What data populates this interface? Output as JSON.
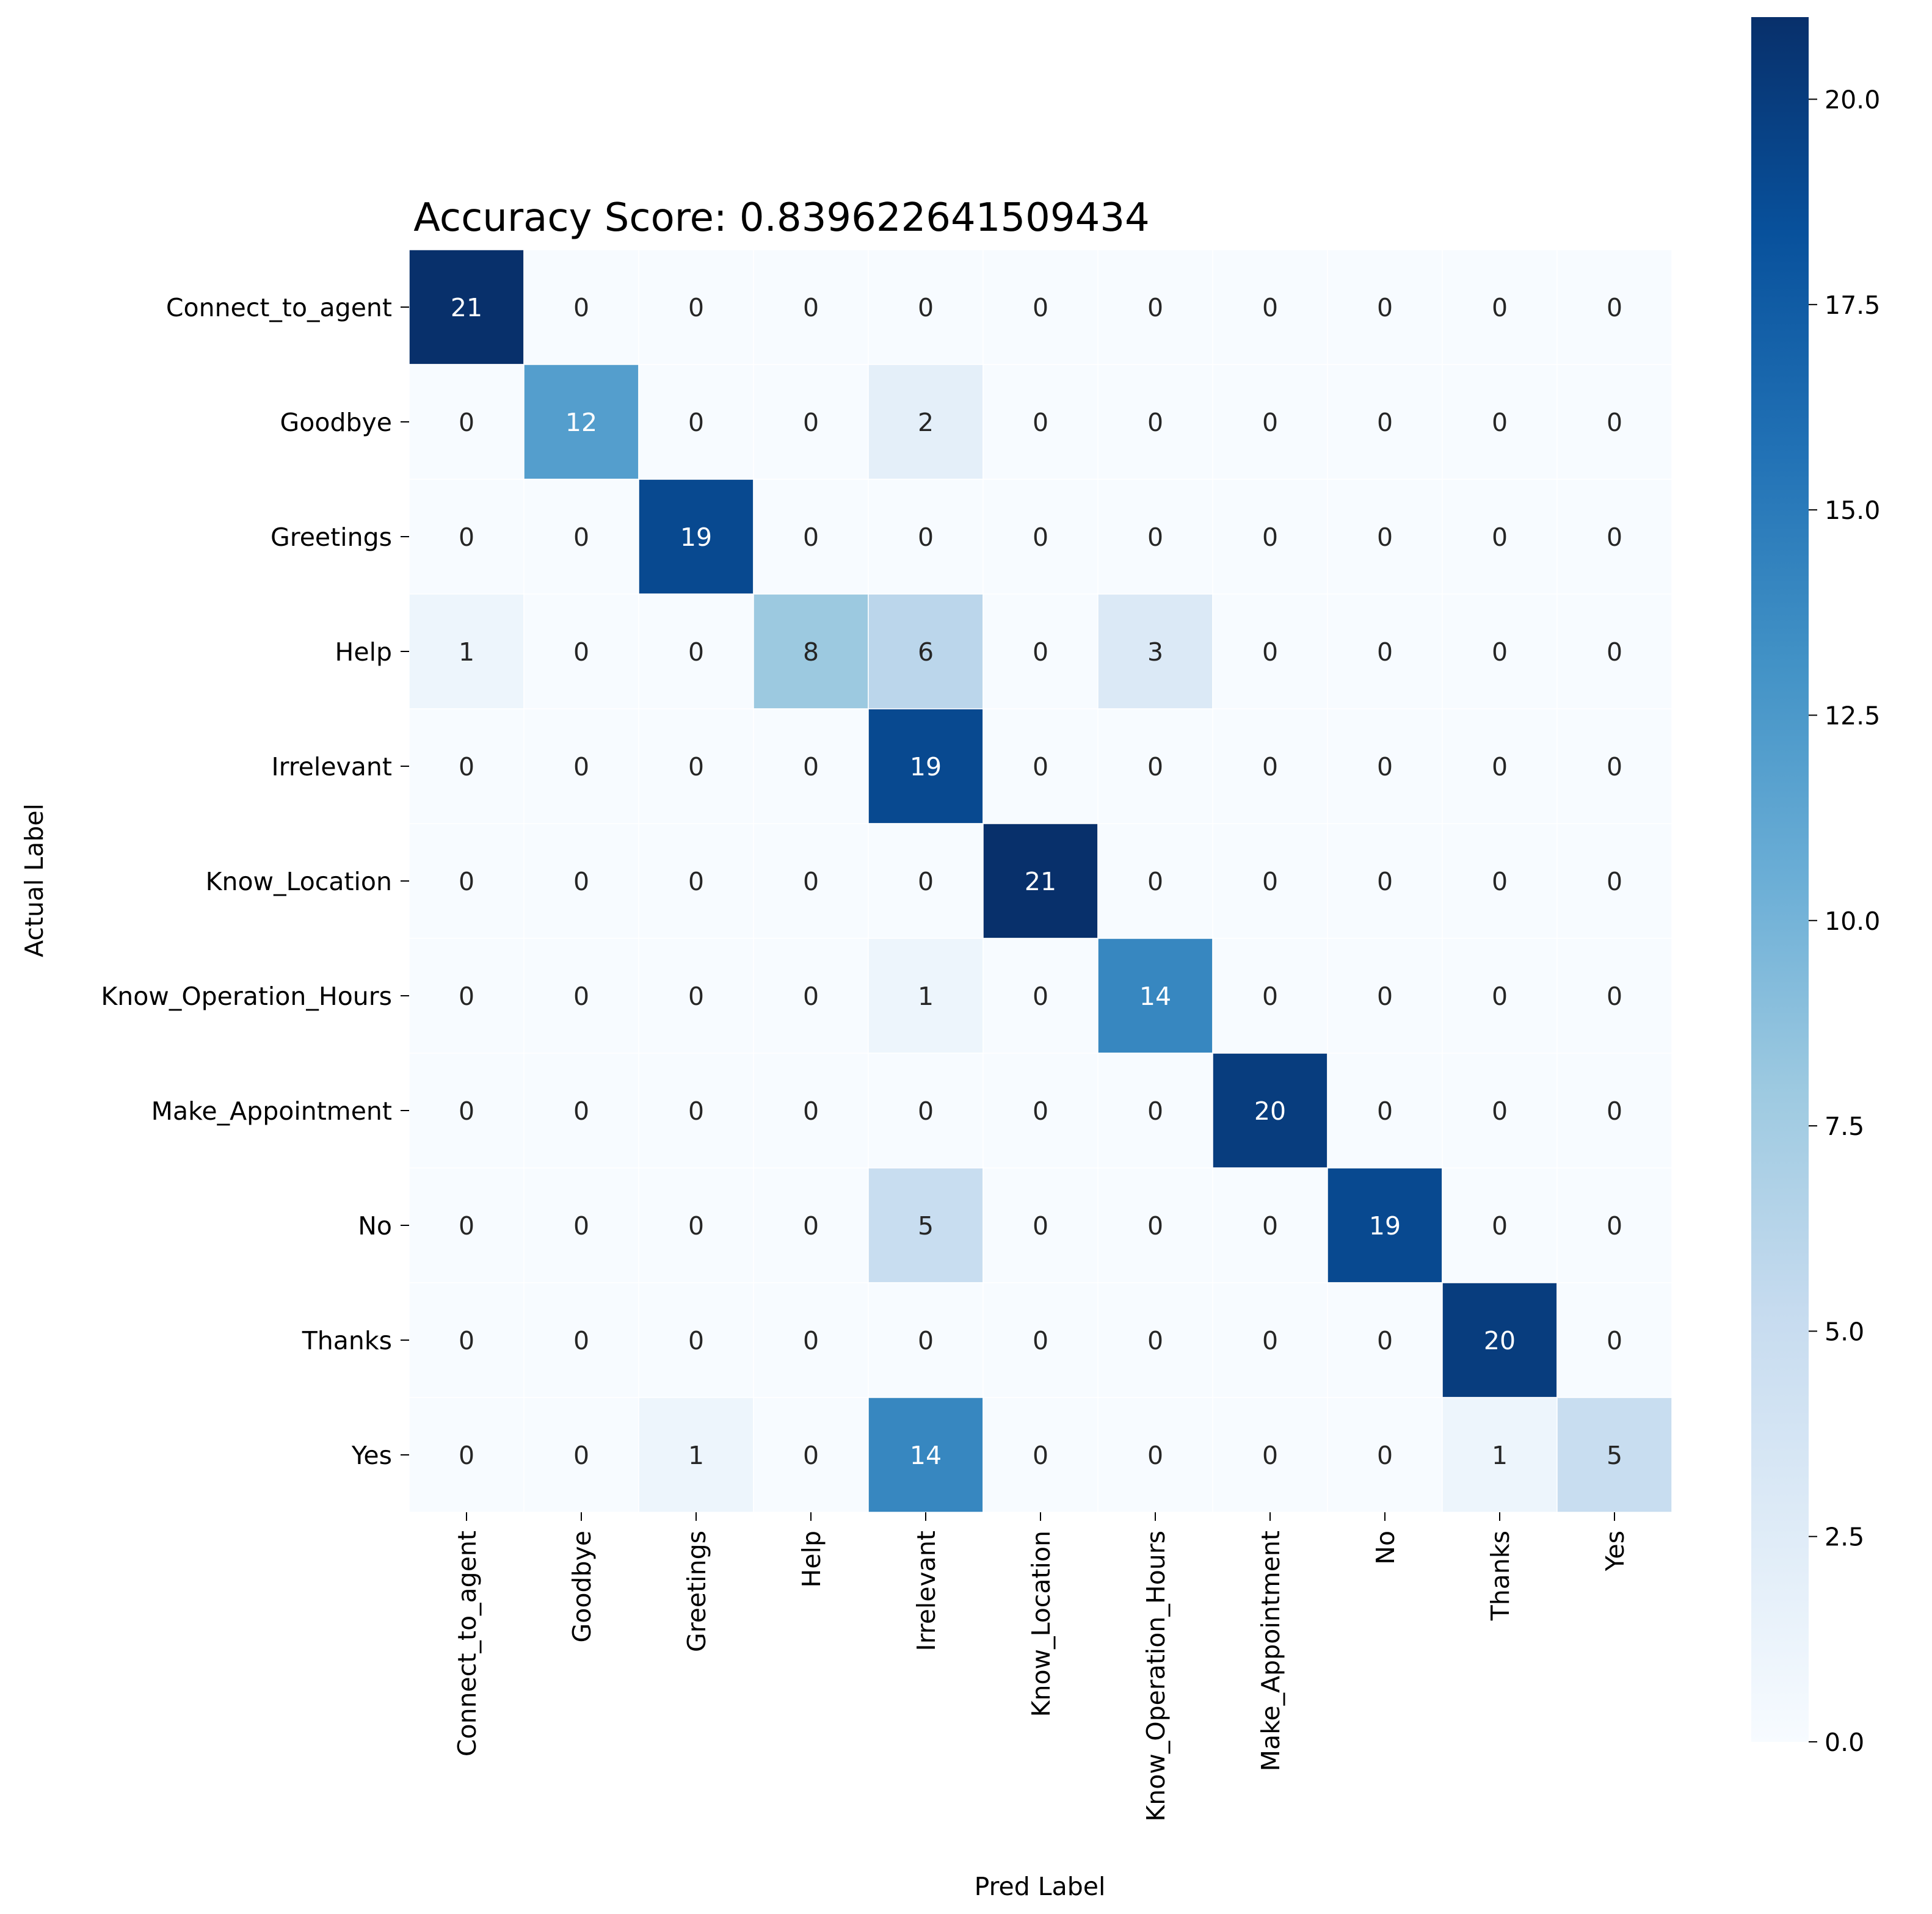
{
  "chart_data": {
    "type": "heatmap",
    "title": "Accuracy Score: 0.839622641509434",
    "xlabel": "Pred Label",
    "ylabel": "Actual Label",
    "x_categories": [
      "Connect_to_agent",
      "Goodbye",
      "Greetings",
      "Help",
      "Irrelevant",
      "Know_Location",
      "Know_Operation_Hours",
      "Make_Appointment",
      "No",
      "Thanks",
      "Yes"
    ],
    "y_categories": [
      "Connect_to_agent",
      "Goodbye",
      "Greetings",
      "Help",
      "Irrelevant",
      "Know_Location",
      "Know_Operation_Hours",
      "Make_Appointment",
      "No",
      "Thanks",
      "Yes"
    ],
    "matrix": [
      [
        21,
        0,
        0,
        0,
        0,
        0,
        0,
        0,
        0,
        0,
        0
      ],
      [
        0,
        12,
        0,
        0,
        2,
        0,
        0,
        0,
        0,
        0,
        0
      ],
      [
        0,
        0,
        19,
        0,
        0,
        0,
        0,
        0,
        0,
        0,
        0
      ],
      [
        1,
        0,
        0,
        8,
        6,
        0,
        3,
        0,
        0,
        0,
        0
      ],
      [
        0,
        0,
        0,
        0,
        19,
        0,
        0,
        0,
        0,
        0,
        0
      ],
      [
        0,
        0,
        0,
        0,
        0,
        21,
        0,
        0,
        0,
        0,
        0
      ],
      [
        0,
        0,
        0,
        0,
        1,
        0,
        14,
        0,
        0,
        0,
        0
      ],
      [
        0,
        0,
        0,
        0,
        0,
        0,
        0,
        20,
        0,
        0,
        0
      ],
      [
        0,
        0,
        0,
        0,
        5,
        0,
        0,
        0,
        19,
        0,
        0
      ],
      [
        0,
        0,
        0,
        0,
        0,
        0,
        0,
        0,
        0,
        20,
        0
      ],
      [
        0,
        0,
        1,
        0,
        14,
        0,
        0,
        0,
        0,
        1,
        5
      ]
    ],
    "colormap": "Blues",
    "colorbar": {
      "range": [
        0,
        21
      ],
      "ticks": [
        0.0,
        2.5,
        5.0,
        7.5,
        10.0,
        12.5,
        15.0,
        17.5,
        20.0
      ],
      "tick_labels": [
        "0.0",
        "2.5",
        "5.0",
        "7.5",
        "10.0",
        "12.5",
        "15.0",
        "17.5",
        "20.0"
      ]
    }
  }
}
